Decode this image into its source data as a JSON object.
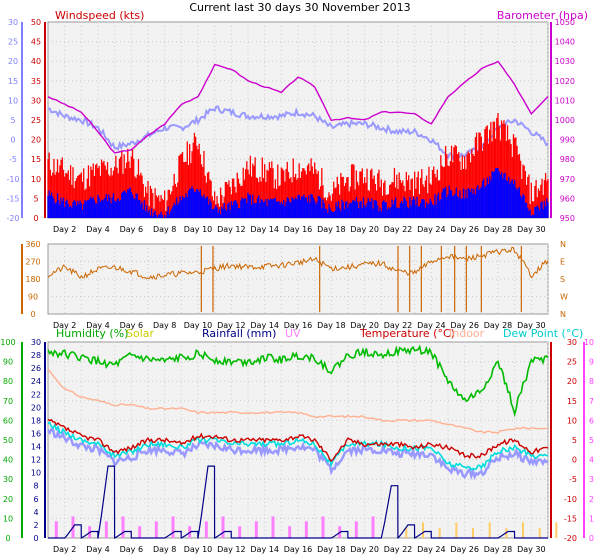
{
  "title": "Current last 30 days 30 November 2013",
  "colors": {
    "windspeed": "#ff0000",
    "gust": "#ff0000",
    "wind_avg": "#0000ff",
    "barometer": "#cc00cc",
    "temp_axis_left": "#8080ff",
    "wind_dir": "#cc6600",
    "humidity": "#00bb00",
    "solar": "#cccc00",
    "rainfall": "#000088",
    "uv": "#ff80ff",
    "temperature": "#cc0000",
    "indoor": "#ffb090",
    "dewpoint": "#00dddd",
    "apparent": "#9999ff"
  },
  "chart_data": [
    {
      "type": "line",
      "panel": "wind-barometer",
      "ylabel_left": "Windspeed (kts)",
      "ylabel_right": "Barometer (hpa)",
      "ylim_left": [
        0,
        50
      ],
      "ylim_right": [
        950,
        1050
      ],
      "ylim_far_left": [
        -20,
        30
      ],
      "x_tick_labels": [
        "Day 2",
        "Day 4",
        "Day 6",
        "Day 8",
        "Day 10",
        "Day 12",
        "Day 14",
        "Day 16",
        "Day 18",
        "Day 20",
        "Day 22",
        "Day 24",
        "Day 26",
        "Day 28",
        "Day 30"
      ],
      "left_ticks": [
        "0",
        "5",
        "10",
        "15",
        "20",
        "25",
        "30",
        "35",
        "40",
        "45",
        "50"
      ],
      "right_ticks": [
        "950",
        "960",
        "970",
        "980",
        "990",
        "1000",
        "1010",
        "1020",
        "1030",
        "1040",
        "1050"
      ],
      "far_left_ticks": [
        "-20",
        "-15",
        "-10",
        "-5",
        "0",
        "5",
        "10",
        "15",
        "20",
        "25",
        "30"
      ],
      "x": [
        1,
        2,
        3,
        4,
        5,
        6,
        7,
        8,
        9,
        10,
        11,
        12,
        13,
        14,
        15,
        16,
        17,
        18,
        19,
        20,
        21,
        22,
        23,
        24,
        25,
        26,
        27,
        28,
        29,
        30,
        31
      ],
      "series": [
        {
          "name": "Gust",
          "values": [
            14,
            12,
            10,
            12,
            13,
            16,
            6,
            4,
            14,
            20,
            4,
            8,
            13,
            12,
            10,
            13,
            12,
            6,
            10,
            11,
            9,
            10,
            9,
            10,
            16,
            15,
            20,
            24,
            18,
            6,
            10
          ]
        },
        {
          "name": "Windspeed",
          "values": [
            6,
            4,
            3,
            5,
            5,
            7,
            2,
            1,
            5,
            8,
            2,
            3,
            5,
            4,
            4,
            5,
            5,
            2,
            4,
            4,
            3,
            4,
            4,
            4,
            7,
            6,
            8,
            12,
            9,
            2,
            4
          ]
        },
        {
          "name": "Barometer",
          "values": [
            1012,
            1008,
            1004,
            994,
            983,
            985,
            992,
            998,
            1008,
            1012,
            1028,
            1026,
            1020,
            1017,
            1014,
            1022,
            1017,
            1000,
            1001,
            1000,
            1004,
            1004,
            1003,
            998,
            1012,
            1019,
            1026,
            1030,
            1018,
            1003,
            1012
          ]
        },
        {
          "name": "Apparent temp",
          "values": [
            8,
            6,
            5,
            3,
            -2,
            -1,
            1,
            3,
            3,
            5,
            8,
            7,
            6,
            6,
            6,
            7,
            6,
            3,
            4,
            4,
            3,
            2,
            2,
            0,
            -4,
            -4,
            -2,
            3,
            5,
            2,
            -1
          ]
        }
      ]
    },
    {
      "type": "scatter",
      "panel": "wind-direction",
      "ylim": [
        0,
        360
      ],
      "left_ticks": [
        "0",
        "90",
        "180",
        "270",
        "360"
      ],
      "right_ticks": [
        "N",
        "W",
        "S",
        "E",
        "N"
      ],
      "x_tick_labels": [
        "Day 2",
        "Day 4",
        "Day 6",
        "Day 8",
        "Day 10",
        "Day 12",
        "Day 14",
        "Day 16",
        "Day 18",
        "Day 20",
        "Day 22",
        "Day 24",
        "Day 26",
        "Day 28",
        "Day 30"
      ],
      "x": [
        1,
        2,
        3,
        4,
        5,
        6,
        7,
        8,
        9,
        10,
        11,
        12,
        13,
        14,
        15,
        16,
        17,
        18,
        19,
        20,
        21,
        22,
        23,
        24,
        25,
        26,
        27,
        28,
        29,
        30,
        31
      ],
      "series": [
        {
          "name": "Wind direction",
          "values": [
            200,
            240,
            190,
            230,
            240,
            220,
            190,
            200,
            210,
            215,
            235,
            250,
            240,
            245,
            250,
            265,
            280,
            235,
            240,
            255,
            260,
            220,
            210,
            270,
            300,
            280,
            300,
            320,
            330,
            200,
            275
          ]
        }
      ]
    },
    {
      "type": "line",
      "panel": "temperature-humidity-rain",
      "legend": [
        "Humidity (%)",
        "Solar",
        "Rainfall (mm)",
        "UV",
        "Temperature (°C)",
        "Indoor",
        "Dew Point (°C)"
      ],
      "left_ticks": [
        "0",
        "10",
        "20",
        "30",
        "40",
        "50",
        "60",
        "70",
        "80",
        "90",
        "100"
      ],
      "left2_ticks": [
        "0",
        "2",
        "4",
        "6",
        "8",
        "10",
        "12",
        "14",
        "16",
        "18",
        "20",
        "22",
        "24",
        "26",
        "28",
        "30"
      ],
      "right_ticks": [
        "-20",
        "-15",
        "-10",
        "-5",
        "0",
        "5",
        "10",
        "15",
        "20",
        "25",
        "30"
      ],
      "far_right_ticks": [
        "0",
        "1",
        "2",
        "3",
        "4",
        "5",
        "6",
        "7",
        "8",
        "9",
        "10"
      ],
      "ylim_humidity": [
        0,
        100
      ],
      "ylim_rain": [
        0,
        30
      ],
      "ylim_temp": [
        -20,
        30
      ],
      "ylim_uv": [
        0,
        10
      ],
      "x_tick_labels": [
        "Day 2",
        "Day 4",
        "Day 6",
        "Day 8",
        "Day 10",
        "Day 12",
        "Day 14",
        "Day 16",
        "Day 18",
        "Day 20",
        "Day 22",
        "Day 24",
        "Day 26",
        "Day 28",
        "Day 30"
      ],
      "x": [
        1,
        2,
        3,
        4,
        5,
        6,
        7,
        8,
        9,
        10,
        11,
        12,
        13,
        14,
        15,
        16,
        17,
        18,
        19,
        20,
        21,
        22,
        23,
        24,
        25,
        26,
        27,
        28,
        29,
        30,
        31
      ],
      "series": [
        {
          "name": "Humidity (%)",
          "values": [
            95,
            94,
            92,
            90,
            88,
            93,
            91,
            90,
            92,
            94,
            91,
            90,
            90,
            92,
            91,
            93,
            92,
            85,
            93,
            95,
            94,
            95,
            96,
            95,
            80,
            70,
            75,
            90,
            65,
            90,
            92
          ]
        },
        {
          "name": "Temperature (°C)",
          "values": [
            10,
            8,
            6,
            5,
            2,
            3,
            5,
            5,
            4,
            6,
            6,
            5,
            5,
            5,
            5,
            6,
            5,
            0,
            5,
            4,
            4,
            4,
            3,
            4,
            3,
            1,
            1,
            4,
            5,
            2,
            3
          ]
        },
        {
          "name": "Dew Point (°C)",
          "values": [
            9,
            7,
            5,
            4,
            1,
            2,
            4,
            4,
            3,
            5,
            5,
            4,
            4,
            4,
            4,
            5,
            4,
            -1,
            4,
            4,
            4,
            3,
            3,
            3,
            -1,
            -2,
            -2,
            2,
            3,
            1,
            1
          ]
        },
        {
          "name": "Indoor",
          "values": [
            23,
            18,
            16,
            15,
            14,
            14,
            13,
            13,
            13,
            12,
            12,
            12,
            12,
            12,
            12,
            12,
            11,
            11,
            11,
            11,
            10,
            10,
            10,
            10,
            9,
            8,
            7,
            7,
            8,
            8,
            8
          ]
        },
        {
          "name": "Rainfall (mm)",
          "values": [
            0,
            2,
            1,
            11,
            1,
            0,
            0,
            1,
            1,
            11,
            1,
            0,
            0,
            0,
            0,
            0,
            0,
            1,
            0,
            0,
            8,
            2,
            1,
            0,
            0,
            0,
            0,
            1,
            0,
            0,
            1
          ]
        },
        {
          "name": "UV",
          "values": [
            1,
            1,
            1,
            1,
            1,
            1,
            1,
            1,
            1,
            1,
            1,
            1,
            1,
            1,
            1,
            1,
            1,
            1,
            1,
            1,
            0,
            0,
            0,
            0,
            0,
            0,
            0,
            0,
            0,
            0,
            0
          ]
        },
        {
          "name": "Solar",
          "values": [
            0,
            0,
            0,
            0,
            0,
            0,
            0,
            0,
            0,
            0,
            0,
            0,
            0,
            0,
            0,
            0,
            0,
            0,
            0,
            0,
            0,
            1,
            1,
            1,
            1,
            1,
            1,
            1,
            1,
            1,
            1
          ]
        }
      ]
    }
  ]
}
